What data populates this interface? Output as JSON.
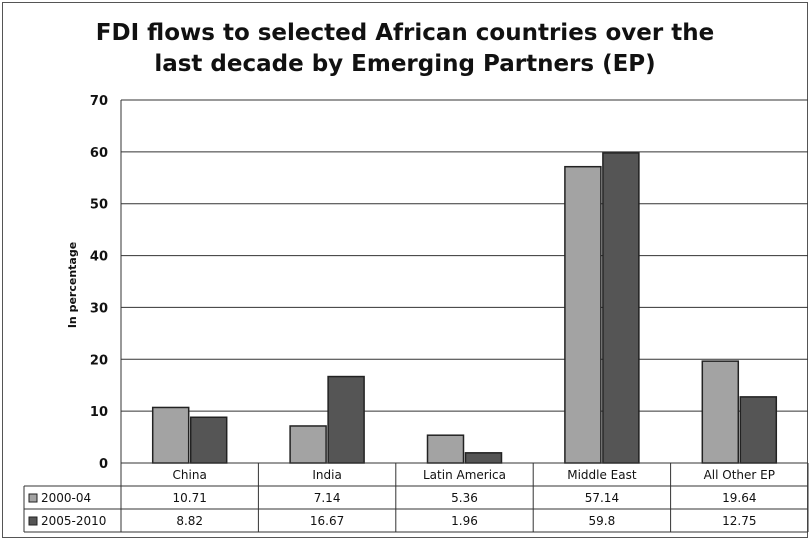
{
  "chart_data": {
    "type": "bar",
    "title_lines": [
      "FDI flows to selected African countries over the",
      "last decade by Emerging Partners (EP)"
    ],
    "ylabel": "In percentage",
    "ylim": [
      0,
      70
    ],
    "yticks": [
      0,
      10,
      20,
      30,
      40,
      50,
      60,
      70
    ],
    "grid": true,
    "legend_placement": "data-table",
    "categories": [
      "China",
      "India",
      "Latin America",
      "Middle East",
      "All Other EP"
    ],
    "series": [
      {
        "name": "2000-04",
        "values": [
          10.71,
          7.14,
          5.36,
          57.14,
          19.64
        ],
        "value_labels": [
          "10.71",
          "7.14",
          "5.36",
          "57.14",
          "19.64"
        ],
        "color": "#a3a3a3"
      },
      {
        "name": "2005-2010",
        "values": [
          8.82,
          16.67,
          1.96,
          59.8,
          12.75
        ],
        "value_labels": [
          "8.82",
          "16.67",
          "1.96",
          "59.8",
          "12.75"
        ],
        "color": "#555555"
      }
    ]
  }
}
